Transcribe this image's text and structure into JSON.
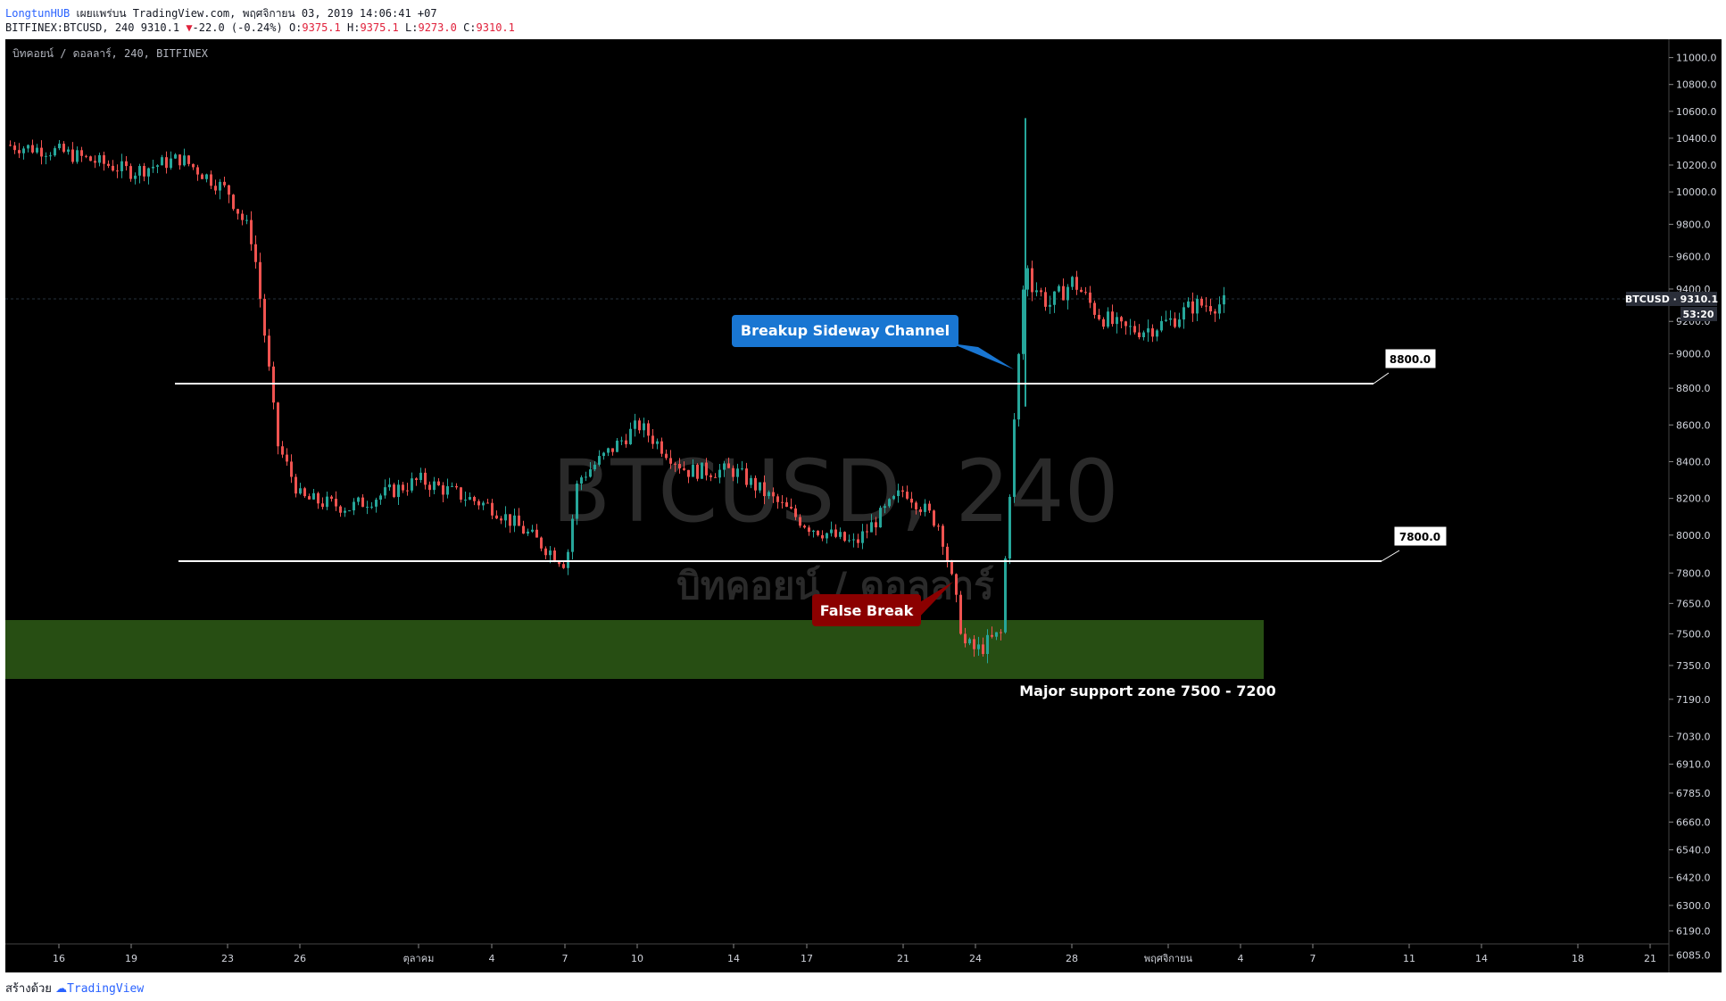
{
  "header": {
    "author": "LongtunHUB",
    "published": "เผยแพร่บน TradingView.com, พฤศจิกายน 03, 2019 14:06:41 +07",
    "symbol_line": "BITFINEX:BTCUSD, 240 9310.1",
    "change": "-22.0 (-0.24%)",
    "o_label": "O:",
    "o_value": "9375.1",
    "h_label": "H:",
    "h_value": "9375.1",
    "l_label": "L:",
    "l_value": "9273.0",
    "c_label": "C:",
    "c_value": "9310.1"
  },
  "chart_title": "บิทคอยน์ / ดอลลาร์, 240, BITFINEX",
  "watermark": {
    "line1": "BTCUSD, 240",
    "line2": "บิทคอยน์ / ดอลลาร์"
  },
  "footer": {
    "created_with": "สร้างด้วย",
    "brand": "TradingView"
  },
  "colors": {
    "background": "#000000",
    "up": "#26a69a",
    "down": "#ef5350",
    "zone": "#274e13",
    "callout_blue": "#1976d2",
    "callout_red": "#8b0000"
  },
  "chart_data": {
    "type": "candlestick",
    "symbol": "BTCUSD",
    "timeframe": "240",
    "exchange": "BITFINEX",
    "last_price": "9310.1",
    "price_label": "BTCUSD · 9310.1",
    "countdown": "53:20",
    "y_ticks": [
      "11000.0",
      "10800.0",
      "10600.0",
      "10400.0",
      "10200.0",
      "10000.0",
      "9800.0",
      "9600.0",
      "9400.0",
      "9200.0",
      "9000.0",
      "8800.0",
      "8600.0",
      "8400.0",
      "8200.0",
      "8000.0",
      "7800.0",
      "7650.0",
      "7500.0",
      "7350.0",
      "7190.0",
      "7030.0",
      "6910.0",
      "6785.0",
      "6660.0",
      "6540.0",
      "6420.0",
      "6300.0",
      "6190.0",
      "6085.0"
    ],
    "x_ticks": [
      "16",
      "19",
      "23",
      "26",
      "ตุลาคม",
      "4",
      "7",
      "10",
      "14",
      "17",
      "21",
      "24",
      "28",
      "พฤศจิกายน",
      "4",
      "7",
      "11",
      "14",
      "18",
      "21"
    ],
    "horizontal_lines": [
      {
        "price": 8800,
        "label": "8800.0"
      },
      {
        "price": 7800,
        "label": "7800.0"
      }
    ],
    "zone": {
      "from": 7200,
      "to": 7500,
      "label": "Major support zone 7500 - 7200"
    },
    "annotations": [
      {
        "text": "Breakup Sideway Channel",
        "style": "blue"
      },
      {
        "text": "False Break",
        "style": "red"
      }
    ],
    "series": [
      {
        "period": "Sep 14",
        "value": 10350
      },
      {
        "period": "Sep 16",
        "value": 10300
      },
      {
        "period": "Sep 19",
        "value": 10150
      },
      {
        "period": "Sep 21",
        "value": 10250
      },
      {
        "period": "Sep 23",
        "value": 10000
      },
      {
        "period": "Sep 24",
        "value": 9700
      },
      {
        "period": "Sep 25",
        "value": 8500
      },
      {
        "period": "Sep 26",
        "value": 8200
      },
      {
        "period": "Sep 28",
        "value": 8150
      },
      {
        "period": "Oct 1",
        "value": 8300
      },
      {
        "period": "Oct 4",
        "value": 8150
      },
      {
        "period": "Oct 7",
        "value": 7850
      },
      {
        "period": "Oct 8",
        "value": 8300
      },
      {
        "period": "Oct 10",
        "value": 8600
      },
      {
        "period": "Oct 12",
        "value": 8350
      },
      {
        "period": "Oct 14",
        "value": 8350
      },
      {
        "period": "Oct 17",
        "value": 8050
      },
      {
        "period": "Oct 19",
        "value": 7950
      },
      {
        "period": "Oct 21",
        "value": 8250
      },
      {
        "period": "Oct 22",
        "value": 8050
      },
      {
        "period": "Oct 23",
        "value": 7450
      },
      {
        "period": "Oct 24",
        "value": 7420
      },
      {
        "period": "Oct 25",
        "value": 7500
      },
      {
        "period": "Oct 26",
        "value": 9500
      },
      {
        "period": "Oct 27",
        "value": 9300
      },
      {
        "period": "Oct 28",
        "value": 9450
      },
      {
        "period": "Oct 29",
        "value": 9250
      },
      {
        "period": "Oct 30",
        "value": 9150
      },
      {
        "period": "Oct 31",
        "value": 9150
      },
      {
        "period": "Nov 1",
        "value": 9200
      },
      {
        "period": "Nov 2",
        "value": 9300
      },
      {
        "period": "Nov 3",
        "value": 9310
      }
    ]
  }
}
